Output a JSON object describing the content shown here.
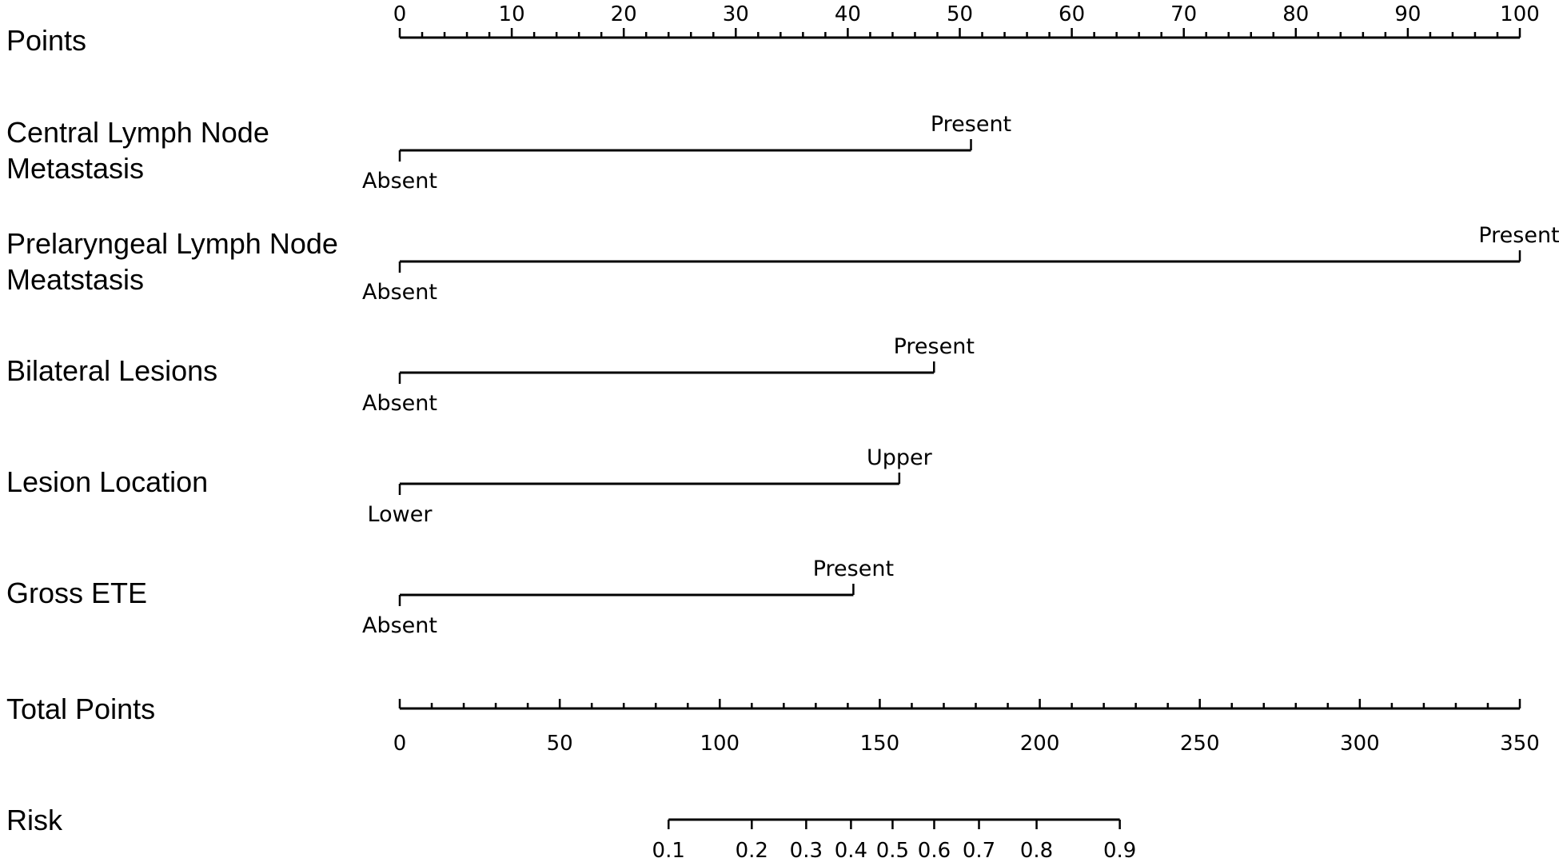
{
  "chart_data": {
    "type": "nomogram",
    "points_axis": {
      "label": "Points",
      "min": 0,
      "max": 100,
      "major_ticks": [
        0,
        10,
        20,
        30,
        40,
        50,
        60,
        70,
        80,
        90,
        100
      ],
      "minor_step": 2
    },
    "variables": [
      {
        "label_lines": [
          "Central Lymph Node",
          "Metastasis"
        ],
        "levels": [
          {
            "name": "Absent",
            "points": 0
          },
          {
            "name": "Present",
            "points": 51
          }
        ]
      },
      {
        "label_lines": [
          "Prelaryngeal Lymph Node",
          "Meatstasis"
        ],
        "levels": [
          {
            "name": "Absent",
            "points": 0
          },
          {
            "name": "Present",
            "points": 100
          }
        ]
      },
      {
        "label_lines": [
          "Bilateral Lesions"
        ],
        "levels": [
          {
            "name": "Absent",
            "points": 0
          },
          {
            "name": "Present",
            "points": 47.7
          }
        ]
      },
      {
        "label_lines": [
          "Lesion Location"
        ],
        "levels": [
          {
            "name": "Lower",
            "points": 0
          },
          {
            "name": "Upper",
            "points": 44.6
          }
        ]
      },
      {
        "label_lines": [
          "Gross ETE"
        ],
        "levels": [
          {
            "name": "Absent",
            "points": 0
          },
          {
            "name": "Present",
            "points": 40.5
          }
        ]
      }
    ],
    "total_points_axis": {
      "label": "Total Points",
      "min": 0,
      "max": 350,
      "major_ticks": [
        0,
        50,
        100,
        150,
        200,
        250,
        300,
        350
      ],
      "minor_step": 10
    },
    "risk_axis": {
      "label": "Risk",
      "ticks": [
        {
          "label": "0.1",
          "total_points": 84
        },
        {
          "label": "0.2",
          "total_points": 110
        },
        {
          "label": "0.3",
          "total_points": 127
        },
        {
          "label": "0.4",
          "total_points": 141
        },
        {
          "label": "0.5",
          "total_points": 154
        },
        {
          "label": "0.6",
          "total_points": 167
        },
        {
          "label": "0.7",
          "total_points": 181
        },
        {
          "label": "0.8",
          "total_points": 199
        },
        {
          "label": "0.9",
          "total_points": 225
        }
      ]
    }
  }
}
